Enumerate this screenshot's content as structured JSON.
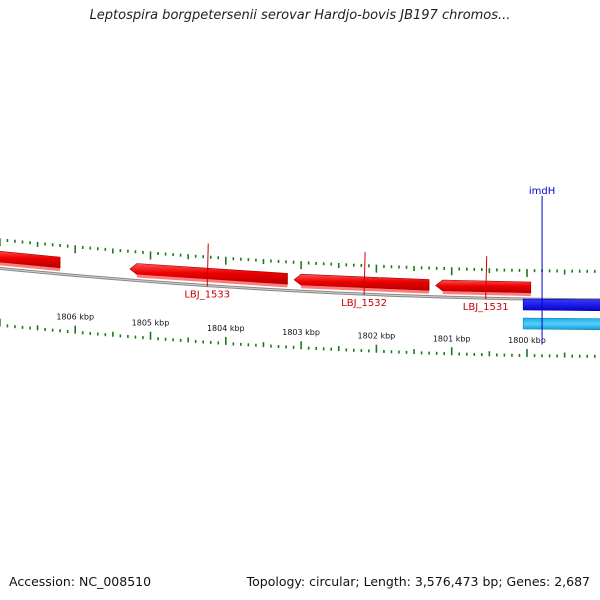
{
  "title": "Leptospira borgpetersenii serovar Hardjo-bovis JB197 chromos...",
  "footer": {
    "accession": "Accession: NC_008510",
    "summary": "Topology: circular; Length: 3,576,473 bp; Genes: 2,687"
  },
  "scale": {
    "unit": "kbp",
    "major_ticks": [
      {
        "label": "1806 kbp",
        "pos_kbp": 1806
      },
      {
        "label": "1805 kbp",
        "pos_kbp": 1805
      },
      {
        "label": "1804 kbp",
        "pos_kbp": 1804
      },
      {
        "label": "1803 kbp",
        "pos_kbp": 1803
      },
      {
        "label": "1802 kbp",
        "pos_kbp": 1802
      },
      {
        "label": "1801 kbp",
        "pos_kbp": 1801
      },
      {
        "label": "1800 kbp",
        "pos_kbp": 1800
      }
    ]
  },
  "genes": [
    {
      "name": "LBJ_1533",
      "strand": "-",
      "color": "#ee1111",
      "start_kbp": 1805.18,
      "end_kbp": 1803.18,
      "labeled": true
    },
    {
      "name": "",
      "strand": "-",
      "color": "#ee1111",
      "start_kbp": 1807.2,
      "end_kbp": 1806.2,
      "labeled": false
    },
    {
      "name": "LBJ_1532",
      "strand": "-",
      "color": "#ee1111",
      "start_kbp": 1803.0,
      "end_kbp": 1801.3,
      "labeled": true
    },
    {
      "name": "LBJ_1531",
      "strand": "-",
      "color": "#ee1111",
      "start_kbp": 1801.12,
      "end_kbp": 1799.95,
      "labeled": true
    },
    {
      "name": "imdH",
      "strand": "+",
      "color": "#0000ee",
      "start_kbp": 1800.05,
      "end_kbp": 1798.6,
      "labeled": true
    },
    {
      "name": "",
      "strand": "+",
      "color": "#22aadd",
      "start_kbp": 1800.05,
      "end_kbp": 1798.6,
      "labeled": false
    }
  ],
  "colors": {
    "backbone": "#888888",
    "tick": "#1a7a1a",
    "forward_gene": "#0000ee",
    "forward_feature": "#22aadd",
    "reverse_gene": "#ee1111"
  }
}
